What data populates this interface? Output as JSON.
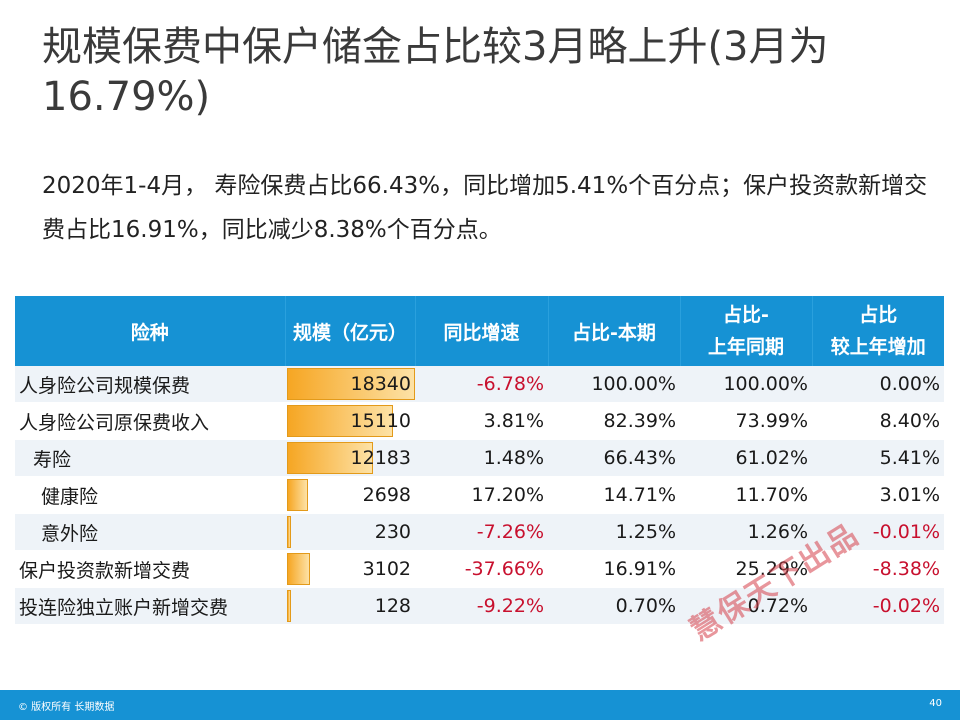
{
  "title": "规模保费中保户储金占比较3月略上升(3月为16.79%)",
  "summary": "2020年1-4月， 寿险保费占比66.43%，同比增加5.41%个百分点；保户投资款新增交费占比16.91%，同比减少8.38%个百分点。",
  "table": {
    "headers": {
      "type": "险种",
      "scale": "规模（亿元）",
      "yoy": "同比增速",
      "share_cur": "占比-本期",
      "share_prev_line1": "占比-",
      "share_prev_line2": "上年同期",
      "share_diff_line1": "占比",
      "share_diff_line2": "较上年增加"
    },
    "rows": [
      {
        "name": "人身险公司规模保费",
        "scale": "18340",
        "yoy": "-6.78%",
        "share_cur": "100.00%",
        "share_prev": "100.00%",
        "share_diff": "0.00%"
      },
      {
        "name": "人身险公司原保费收入",
        "scale": "15110",
        "yoy": "3.81%",
        "share_cur": "82.39%",
        "share_prev": "73.99%",
        "share_diff": "8.40%"
      },
      {
        "name": "寿险",
        "scale": "12183",
        "yoy": "1.48%",
        "share_cur": "66.43%",
        "share_prev": "61.02%",
        "share_diff": "5.41%"
      },
      {
        "name": "健康险",
        "scale": "2698",
        "yoy": "17.20%",
        "share_cur": "14.71%",
        "share_prev": "11.70%",
        "share_diff": "3.01%"
      },
      {
        "name": "意外险",
        "scale": "230",
        "yoy": "-7.26%",
        "share_cur": "1.25%",
        "share_prev": "1.26%",
        "share_diff": "-0.01%"
      },
      {
        "name": "保户投资款新增交费",
        "scale": "3102",
        "yoy": "-37.66%",
        "share_cur": "16.91%",
        "share_prev": "25.29%",
        "share_diff": "-8.38%"
      },
      {
        "name": "投连险独立账户新增交费",
        "scale": "128",
        "yoy": "-9.22%",
        "share_cur": "0.70%",
        "share_prev": "0.72%",
        "share_diff": "-0.02%"
      }
    ]
  },
  "watermark": "慧保天下出品",
  "footer": {
    "copyright": "© 版权所有 长期数据",
    "page_number": "40"
  },
  "colors": {
    "header_bg": "#1692d4",
    "bar_orange": "#f6a623",
    "negative": "#c8102e",
    "stripe": "#eef3f8"
  }
}
